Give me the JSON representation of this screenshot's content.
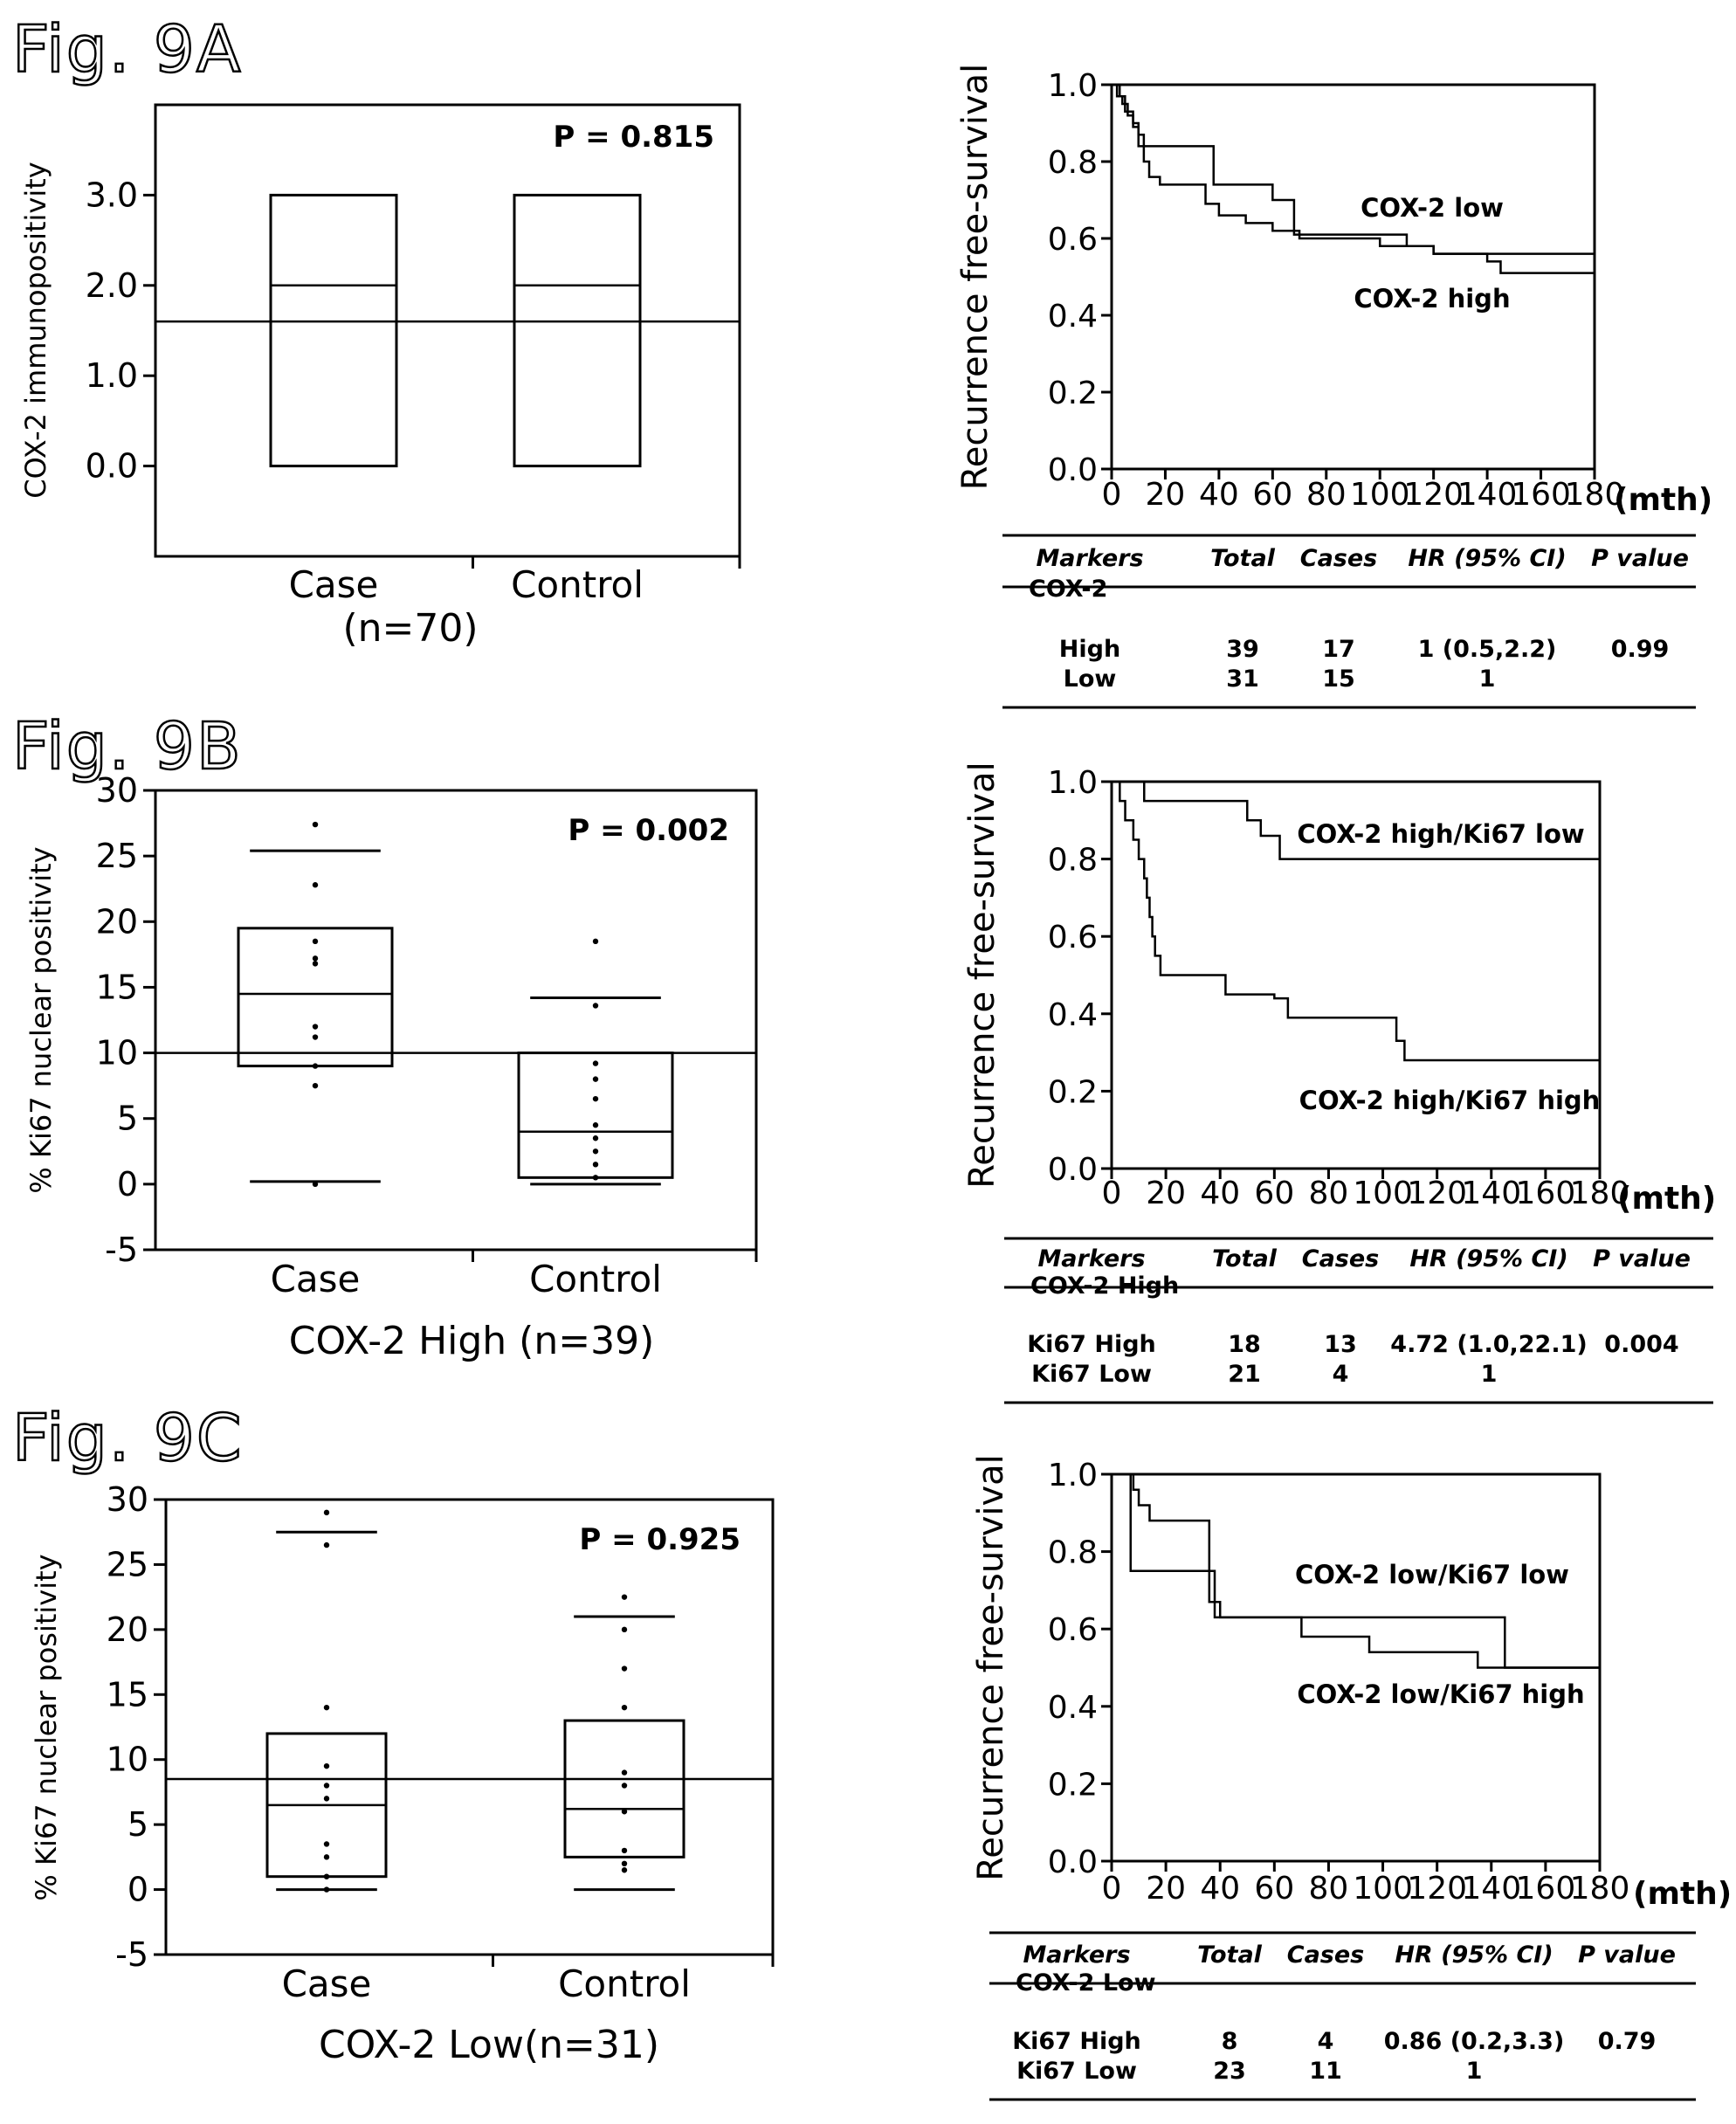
{
  "figure_labels": [
    "Fig. 9A",
    "Fig. 9B",
    "Fig. 9C"
  ],
  "chart_data": [
    {
      "type": "box",
      "panel": "A",
      "ylabel": "COX-2 immunopositivity",
      "ylim": [
        -1,
        4
      ],
      "yticks": [
        "0.0",
        "1.0",
        "2.0",
        "3.0"
      ],
      "ytick_values": [
        0,
        1,
        2,
        3
      ],
      "p_value": "P = 0.815",
      "categories": [
        "Case",
        "Control"
      ],
      "subtitle": "(n=70)",
      "reference_line": 1.6,
      "boxes": [
        {
          "name": "Case",
          "q1": 0,
          "median": 2,
          "q3": 3
        },
        {
          "name": "Control",
          "q1": 0,
          "median": 2,
          "q3": 3
        }
      ]
    },
    {
      "type": "line",
      "panel": "A-right",
      "ylabel": "Recurrence free-survival",
      "xunit": "(mth)",
      "xlim": [
        0,
        180
      ],
      "ylim": [
        0,
        1
      ],
      "xticks": [
        "0",
        "20",
        "40",
        "60",
        "80",
        "100",
        "120",
        "140",
        "160",
        "180"
      ],
      "yticks": [
        "0.0",
        "0.2",
        "0.4",
        "0.6",
        "0.8",
        "1.0"
      ],
      "series": [
        {
          "name": "COX-2 low",
          "x": [
            0,
            3,
            5,
            8,
            10,
            12,
            14,
            16,
            35,
            38,
            45,
            55,
            60,
            68,
            90,
            110,
            120,
            180
          ],
          "y": [
            1,
            0.97,
            0.93,
            0.9,
            0.87,
            0.84,
            0.84,
            0.84,
            0.84,
            0.74,
            0.74,
            0.74,
            0.7,
            0.61,
            0.61,
            0.58,
            0.56,
            0.56
          ]
        },
        {
          "name": "COX-2 high",
          "x": [
            0,
            2,
            4,
            6,
            8,
            10,
            12,
            14,
            18,
            30,
            35,
            40,
            50,
            60,
            70,
            80,
            100,
            120,
            140,
            145,
            180
          ],
          "y": [
            1,
            0.97,
            0.95,
            0.92,
            0.89,
            0.84,
            0.8,
            0.76,
            0.74,
            0.74,
            0.69,
            0.66,
            0.64,
            0.62,
            0.6,
            0.6,
            0.58,
            0.56,
            0.54,
            0.51,
            0.51
          ]
        }
      ],
      "table": {
        "headers": [
          "Markers",
          "Total",
          "Cases",
          "HR (95% CI)",
          "P value"
        ],
        "group": "COX-2",
        "rows": [
          {
            "marker": "High",
            "total": "39",
            "cases": "17",
            "hr": "1 (0.5,2.2)",
            "p": "0.99"
          },
          {
            "marker": "Low",
            "total": "31",
            "cases": "15",
            "hr": "1",
            "p": ""
          }
        ]
      }
    },
    {
      "type": "box",
      "panel": "B",
      "ylabel": "% Ki67 nuclear positivity",
      "ylim": [
        -5,
        30
      ],
      "yticks": [
        "-5",
        "0",
        "5",
        "10",
        "15",
        "20",
        "25",
        "30"
      ],
      "ytick_values": [
        -5,
        0,
        5,
        10,
        15,
        20,
        25,
        30
      ],
      "p_value": "P = 0.002",
      "categories": [
        "Case",
        "Control"
      ],
      "subtitle": "COX-2 High (n=39)",
      "reference_line": 10,
      "boxes": [
        {
          "name": "Case",
          "whisker_low": 0.2,
          "q1": 9,
          "median": 14.5,
          "q3": 19.5,
          "whisker_high": 25.4,
          "points": [
            27.4,
            22.8,
            18.5,
            17.2,
            16.8,
            12,
            11.2,
            9,
            7.5,
            0
          ]
        },
        {
          "name": "Control",
          "whisker_low": 0,
          "q1": 0.5,
          "median": 4,
          "q3": 10,
          "whisker_high": 14.2,
          "points": [
            18.5,
            13.6,
            9.2,
            8,
            6.5,
            4.5,
            3.5,
            2.5,
            1.5,
            0.5
          ]
        }
      ]
    },
    {
      "type": "line",
      "panel": "B-right",
      "ylabel": "Recurrence free-survival",
      "xunit": "(mth)",
      "xlim": [
        0,
        180
      ],
      "ylim": [
        0,
        1
      ],
      "xticks": [
        "0",
        "20",
        "40",
        "60",
        "80",
        "100",
        "120",
        "140",
        "160",
        "180"
      ],
      "yticks": [
        "0.0",
        "0.2",
        "0.4",
        "0.6",
        "0.8",
        "1.0"
      ],
      "series": [
        {
          "name": "COX-2 high/Ki67 low",
          "x": [
            0,
            10,
            12,
            45,
            50,
            55,
            60,
            62,
            65,
            180
          ],
          "y": [
            1,
            1,
            0.95,
            0.95,
            0.9,
            0.86,
            0.86,
            0.8,
            0.8,
            0.8
          ]
        },
        {
          "name": "COX-2 high/Ki67 high",
          "x": [
            0,
            3,
            5,
            8,
            10,
            12,
            13,
            14,
            15,
            16,
            18,
            38,
            42,
            55,
            60,
            65,
            100,
            105,
            108,
            180
          ],
          "y": [
            1,
            0.95,
            0.9,
            0.85,
            0.8,
            0.75,
            0.7,
            0.65,
            0.6,
            0.55,
            0.5,
            0.5,
            0.45,
            0.45,
            0.44,
            0.39,
            0.39,
            0.33,
            0.28,
            0.28
          ]
        }
      ],
      "table": {
        "headers": [
          "Markers",
          "Total",
          "Cases",
          "HR (95% CI)",
          "P value"
        ],
        "group": "COX-2 High",
        "rows": [
          {
            "marker": "Ki67 High",
            "total": "18",
            "cases": "13",
            "hr": "4.72 (1.0,22.1)",
            "p": "0.004"
          },
          {
            "marker": "Ki67 Low",
            "total": "21",
            "cases": "4",
            "hr": "1",
            "p": ""
          }
        ]
      }
    },
    {
      "type": "box",
      "panel": "C",
      "ylabel": "% Ki67 nuclear positivity",
      "ylim": [
        -5,
        30
      ],
      "yticks": [
        "-5",
        "0",
        "5",
        "10",
        "15",
        "20",
        "25",
        "30"
      ],
      "ytick_values": [
        -5,
        0,
        5,
        10,
        15,
        20,
        25,
        30
      ],
      "p_value": "P = 0.925",
      "categories": [
        "Case",
        "Control"
      ],
      "subtitle": "COX-2 Low(n=31)",
      "reference_line": 8.5,
      "boxes": [
        {
          "name": "Case",
          "whisker_low": 0,
          "q1": 1,
          "median": 6.5,
          "q3": 12,
          "whisker_high": 27.5,
          "points": [
            29,
            26.5,
            14,
            9.5,
            8,
            7,
            3.5,
            2.5,
            1,
            0
          ]
        },
        {
          "name": "Control",
          "whisker_low": 0,
          "q1": 2.5,
          "median": 6.2,
          "q3": 13,
          "whisker_high": 21,
          "points": [
            22.5,
            20,
            17,
            14,
            9,
            8,
            6,
            3,
            2,
            1.5
          ]
        }
      ]
    },
    {
      "type": "line",
      "panel": "C-right",
      "ylabel": "Recurrence free-survival",
      "xunit": "(mth)",
      "xlim": [
        0,
        180
      ],
      "ylim": [
        0,
        1
      ],
      "xticks": [
        "0",
        "20",
        "40",
        "60",
        "80",
        "100",
        "120",
        "140",
        "160",
        "180"
      ],
      "yticks": [
        "0.0",
        "0.2",
        "0.4",
        "0.6",
        "0.8",
        "1.0"
      ],
      "series": [
        {
          "name": "COX-2 low/Ki67 low",
          "x": [
            0,
            5,
            7,
            35,
            38,
            52,
            55,
            145,
            180
          ],
          "y": [
            1,
            1,
            0.75,
            0.75,
            0.63,
            0.63,
            0.63,
            0.5,
            0.5
          ]
        },
        {
          "name": "COX-2 low/Ki67 high",
          "x": [
            0,
            8,
            10,
            14,
            36,
            40,
            45,
            70,
            95,
            135,
            180
          ],
          "y": [
            1,
            0.96,
            0.92,
            0.88,
            0.67,
            0.63,
            0.63,
            0.58,
            0.54,
            0.5,
            0.5
          ]
        }
      ],
      "table": {
        "headers": [
          "Markers",
          "Total",
          "Cases",
          "HR (95% CI)",
          "P value"
        ],
        "group": "COX-2 Low",
        "rows": [
          {
            "marker": "Ki67 High",
            "total": "8",
            "cases": "4",
            "hr": "0.86 (0.2,3.3)",
            "p": "0.79"
          },
          {
            "marker": "Ki67 Low",
            "total": "23",
            "cases": "11",
            "hr": "1",
            "p": ""
          }
        ]
      }
    }
  ]
}
